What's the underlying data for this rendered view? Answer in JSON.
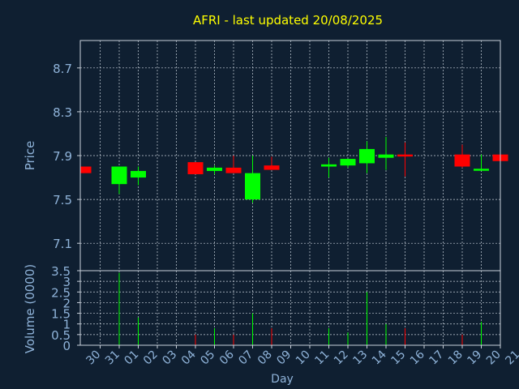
{
  "colors": {
    "background": "#0f1f31",
    "title": "#ffff00",
    "axis_text": "#8fb3d9",
    "grid": "#c8d0da",
    "up": "#00ff00",
    "down": "#ff0000"
  },
  "chart_data": {
    "type": "candlestick",
    "title": "AFRI - last updated 20/08/2025",
    "xlabel": "Day",
    "grid": true,
    "x_ticks": [
      "30",
      "31",
      "01",
      "02",
      "03",
      "04",
      "05",
      "06",
      "07",
      "08",
      "09",
      "10",
      "11",
      "12",
      "13",
      "14",
      "15",
      "16",
      "17",
      "18",
      "19",
      "20",
      "21"
    ],
    "price_panel": {
      "ylabel": "Price",
      "ylim": [
        6.85,
        8.95
      ],
      "y_ticks": [
        7.1,
        7.5,
        7.9,
        8.3,
        8.7
      ],
      "y_tick_labels": [
        "7.1",
        "7.5",
        "7.9",
        "8.3",
        "8.7"
      ]
    },
    "volume_panel": {
      "ylabel": "Volume (0000)",
      "ylim": [
        0,
        3.5
      ],
      "y_ticks": [
        0,
        0.5,
        1,
        1.5,
        2,
        2.5,
        3,
        3.5
      ],
      "y_tick_labels": [
        "0",
        "0.5",
        "1",
        "1.5",
        "2",
        "2.5",
        "3",
        "3.5"
      ]
    },
    "candles": [
      {
        "day": "30",
        "open": 7.8,
        "close": 7.74,
        "high": 7.8,
        "low": 7.74,
        "volume": 0
      },
      {
        "day": "31",
        "open": 7.64,
        "close": 7.8,
        "high": 7.8,
        "low": 7.55,
        "volume": 3.4
      },
      {
        "day": "01",
        "open": 7.7,
        "close": 7.76,
        "high": 7.8,
        "low": 7.63,
        "volume": 1.3
      },
      {
        "day": "04",
        "open": 7.84,
        "close": 7.73,
        "high": 7.84,
        "low": 7.73,
        "volume": 0.5
      },
      {
        "day": "05",
        "open": 7.76,
        "close": 7.79,
        "high": 7.81,
        "low": 7.73,
        "volume": 0.8
      },
      {
        "day": "06",
        "open": 7.79,
        "close": 7.74,
        "high": 7.9,
        "low": 7.74,
        "volume": 0.5
      },
      {
        "day": "07",
        "open": 7.5,
        "close": 7.74,
        "high": 7.9,
        "low": 7.47,
        "volume": 1.5
      },
      {
        "day": "08",
        "open": 7.81,
        "close": 7.77,
        "high": 7.89,
        "low": 7.77,
        "volume": 0.8
      },
      {
        "day": "11",
        "open": 7.8,
        "close": 7.82,
        "high": 7.88,
        "low": 7.7,
        "volume": 0.8
      },
      {
        "day": "12",
        "open": 7.81,
        "close": 7.87,
        "high": 7.87,
        "low": 7.79,
        "volume": 0.6
      },
      {
        "day": "13",
        "open": 7.83,
        "close": 7.96,
        "high": 8.03,
        "low": 7.74,
        "volume": 2.5
      },
      {
        "day": "14",
        "open": 7.88,
        "close": 7.91,
        "high": 8.07,
        "low": 7.77,
        "volume": 1.0
      },
      {
        "day": "15",
        "open": 7.91,
        "close": 7.9,
        "high": 8.02,
        "low": 7.71,
        "volume": 0.8
      },
      {
        "day": "18",
        "open": 7.91,
        "close": 7.8,
        "high": 8.0,
        "low": 7.79,
        "volume": 0.5
      },
      {
        "day": "19",
        "open": 7.77,
        "close": 7.78,
        "high": 7.91,
        "low": 7.77,
        "volume": 1.1
      },
      {
        "day": "20",
        "open": 7.91,
        "close": 7.85,
        "high": 7.91,
        "low": 7.71,
        "volume": 2.0
      }
    ]
  }
}
